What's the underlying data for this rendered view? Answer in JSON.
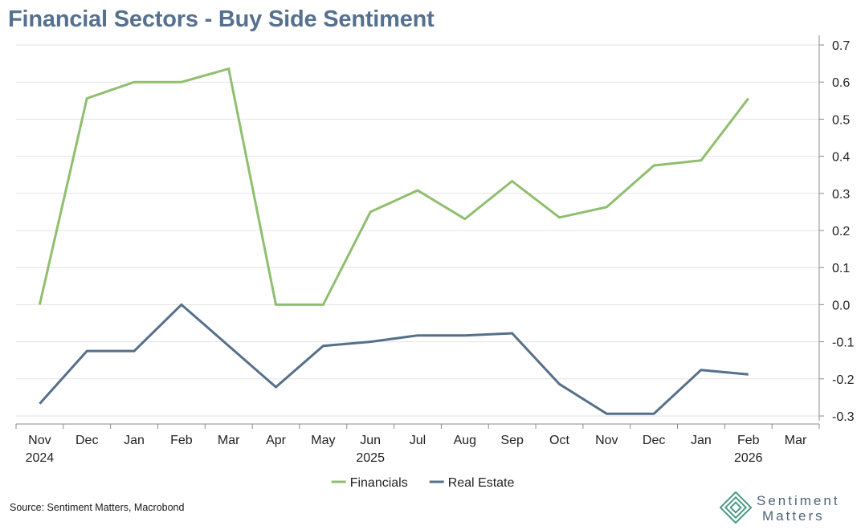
{
  "chart_data": {
    "type": "line",
    "title": "Financial Sectors - Buy Side Sentiment",
    "x": [
      "Nov",
      "Dec",
      "Jan",
      "Feb",
      "Mar",
      "Apr",
      "May",
      "Jun",
      "Jul",
      "Aug",
      "Sep",
      "Oct",
      "Nov",
      "Dec",
      "Jan",
      "Feb",
      "Mar"
    ],
    "year_labels": [
      {
        "index": 0,
        "label": "2024"
      },
      {
        "index": 7,
        "label": "2025"
      },
      {
        "index": 15,
        "label": "2026"
      }
    ],
    "series": [
      {
        "name": "Financials",
        "color": "#8fbf6e",
        "values": [
          0.0,
          0.556,
          0.6,
          0.6,
          0.636,
          0.0,
          0.0,
          0.25,
          0.308,
          0.231,
          0.333,
          0.235,
          0.263,
          0.375,
          0.389,
          0.556,
          null
        ]
      },
      {
        "name": "Real Estate",
        "color": "#56708a",
        "values": [
          -0.267,
          -0.125,
          -0.125,
          0.0,
          -0.111,
          -0.222,
          -0.111,
          -0.1,
          -0.083,
          -0.083,
          -0.077,
          -0.214,
          -0.294,
          -0.294,
          -0.176,
          -0.188,
          null
        ]
      }
    ],
    "yticks": [
      "0.7",
      "0.6",
      "0.5",
      "0.4",
      "0.3",
      "0.2",
      "0.1",
      "0.0",
      "-0.1",
      "-0.2",
      "-0.3"
    ],
    "ylim": [
      -0.3,
      0.7
    ],
    "yaxis_side": "right",
    "grid": true,
    "legend_position": "bottom-center",
    "xlabel": "",
    "ylabel": ""
  },
  "source": "Source: Sentiment Matters, Macrobond",
  "brand": {
    "line1": "Sentiment",
    "line2": "Matters",
    "color": "#4a9a85"
  }
}
